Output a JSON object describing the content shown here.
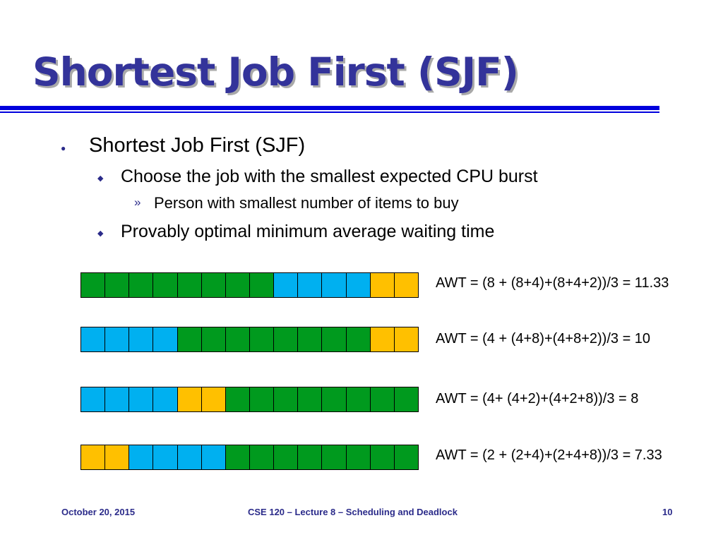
{
  "slide": {
    "title": "Shortest Job First (SJF)"
  },
  "bullets": {
    "level1": "Shortest Job First (SJF)",
    "level2_a": "Choose the job with the smallest expected CPU burst",
    "level3_a": "Person with smallest number of items to buy",
    "level2_b": "Provably optimal minimum average waiting time"
  },
  "markers": {
    "level1": "●",
    "level2": "◆",
    "level3": "»"
  },
  "colors": {
    "green": "#009a1e",
    "blue": "#00b0f0",
    "yellow": "#ffc000",
    "title": "#33339a",
    "rule": "#0000dd"
  },
  "schedules": [
    {
      "cells": [
        "green",
        "green",
        "green",
        "green",
        "green",
        "green",
        "green",
        "green",
        "blue",
        "blue",
        "blue",
        "blue",
        "yellow",
        "yellow"
      ],
      "awt": "AWT = (8 + (8+4)+(8+4+2))/3 = 11.33"
    },
    {
      "cells": [
        "blue",
        "blue",
        "blue",
        "blue",
        "green",
        "green",
        "green",
        "green",
        "green",
        "green",
        "green",
        "green",
        "yellow",
        "yellow"
      ],
      "awt": "AWT = (4 + (4+8)+(4+8+2))/3 = 10"
    },
    {
      "cells": [
        "blue",
        "blue",
        "blue",
        "blue",
        "yellow",
        "yellow",
        "green",
        "green",
        "green",
        "green",
        "green",
        "green",
        "green",
        "green"
      ],
      "awt": "AWT = (4+ (4+2)+(4+2+8))/3 = 8"
    },
    {
      "cells": [
        "yellow",
        "yellow",
        "blue",
        "blue",
        "blue",
        "blue",
        "green",
        "green",
        "green",
        "green",
        "green",
        "green",
        "green",
        "green"
      ],
      "awt": "AWT = (2 + (2+4)+(2+4+8))/3 = 7.33"
    }
  ],
  "footer": {
    "date": "October 20, 2015",
    "course": "CSE 120 – Lecture 8 – Scheduling and Deadlock",
    "page": "10"
  }
}
